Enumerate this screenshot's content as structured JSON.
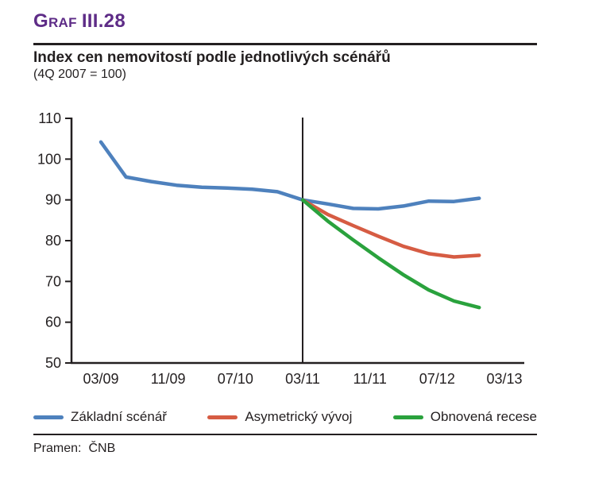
{
  "page": {
    "graf_label": "Graf",
    "graf_number": "III.28",
    "title": "Index cen nemovitostí podle jednotlivých scénářů",
    "subtitle": "(4Q 2007 = 100)",
    "source_label": "Pramen:",
    "source_value": "ČNB",
    "accent_purple": "#5e2c87",
    "text_color": "#231f20"
  },
  "chart_data": {
    "type": "line",
    "title": "Index cen nemovitostí podle jednotlivých scénářů",
    "subtitle": "(4Q 2007 = 100)",
    "grid": false,
    "legend_position": "bottom",
    "x_axis": {
      "tick_labels": [
        "03/09",
        "11/09",
        "07/10",
        "03/11",
        "11/11",
        "07/12",
        "03/13"
      ],
      "tick_months": [
        0,
        8,
        16,
        24,
        32,
        40,
        48
      ],
      "unit": "month/year"
    },
    "y_axis": {
      "ticks": [
        110,
        100,
        90,
        80,
        70,
        60,
        50
      ],
      "min": 50,
      "max": 110
    },
    "divider_month": 24,
    "divider_label": "03/11",
    "series": [
      {
        "name": "Základní scénář",
        "color": "#4e81bd",
        "start_month": 0,
        "step_months": 3,
        "values": [
          104.2,
          95.6,
          94.5,
          93.6,
          93.1,
          92.9,
          92.6,
          92.0,
          90.0,
          89.0,
          87.9,
          87.8,
          88.5,
          89.7,
          89.6,
          90.4
        ]
      },
      {
        "name": "Asymetrický vývoj",
        "color": "#d65c43",
        "start_month": 24,
        "step_months": 3,
        "values": [
          90.0,
          86.4,
          83.7,
          81.1,
          78.6,
          76.8,
          76.0,
          76.4
        ]
      },
      {
        "name": "Obnovená recese",
        "color": "#2aa23d",
        "start_month": 24,
        "step_months": 3,
        "values": [
          90.0,
          84.8,
          80.2,
          75.8,
          71.6,
          67.9,
          65.2,
          63.6
        ]
      }
    ]
  }
}
